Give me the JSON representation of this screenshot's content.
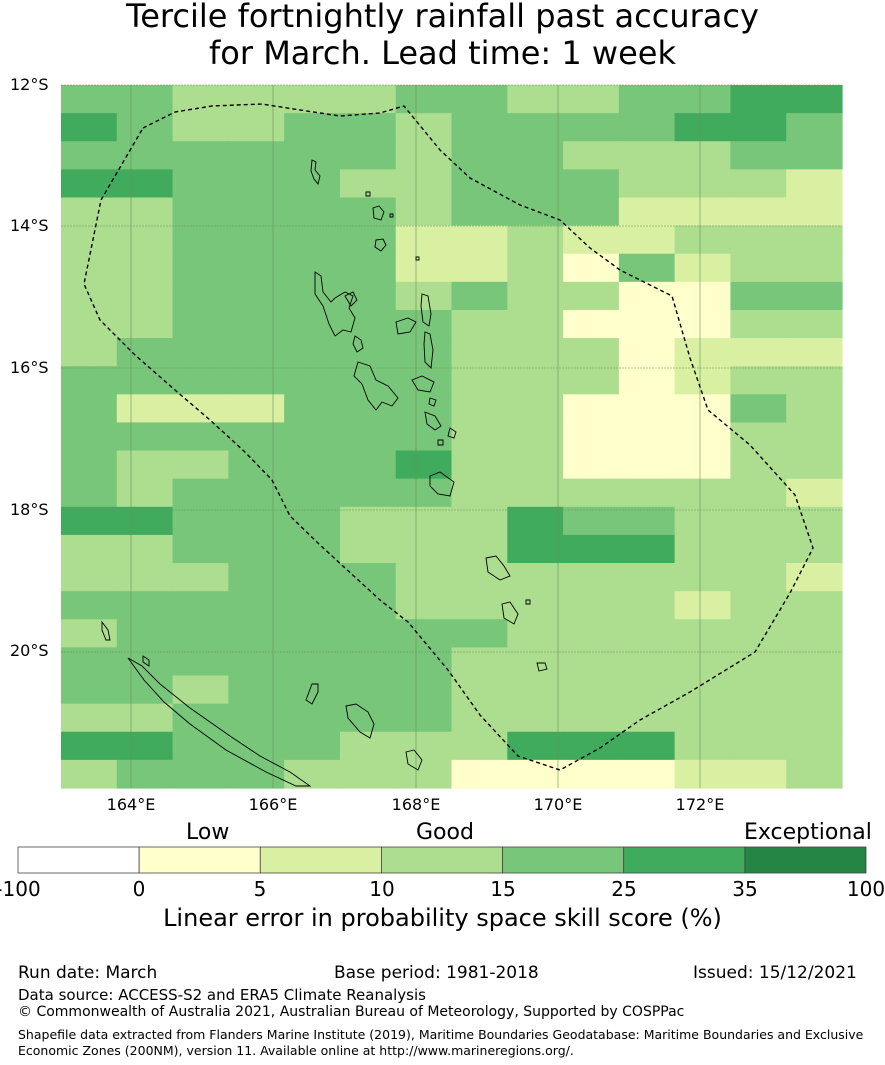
{
  "title_line1": "Tercile fortnightly rainfall past accuracy",
  "title_line2": "for March. Lead time: 1 week",
  "map": {
    "lat_labels": [
      "12°S",
      "14°S",
      "16°S",
      "18°S",
      "20°S"
    ],
    "lon_labels": [
      "164°E",
      "166°E",
      "168°E",
      "170°E",
      "172°E"
    ],
    "lon_range": [
      163,
      174
    ],
    "lat_range": [
      -21.9,
      -12
    ],
    "grid_rows": [
      "44333344334455",
      "54334434444554",
      "44444434433344",
      "55444334443332",
      "33444434442222",
      "33444422322333",
      "33444422314233",
      "33444434331144",
      "33444443311133",
      "34444443331222",
      "44444443331233",
      "42224443311143",
      "44444443311133",
      "43344453311133",
      "43444443333332",
      "55444333544333",
      "33444333555333",
      "33344433333332",
      "44444433333233",
      "34444444333333",
      "44444443333333",
      "44344443333333",
      "33444443333333",
      "55444333555333",
      "34443331111223"
    ],
    "grid_codes_meaning": "1=0-5, 2=5-10, 3=10-15, 4=15-25, 5=25-35"
  },
  "legend": {
    "categories": [
      "Low",
      "Good",
      "Exceptional"
    ],
    "ticks": [
      "-100",
      "0",
      "5",
      "10",
      "15",
      "25",
      "35",
      "100"
    ],
    "colors": [
      "#ffffff",
      "#ffffcc",
      "#d9f0a3",
      "#addd8e",
      "#78c679",
      "#41ab5d",
      "#238443"
    ],
    "label": "Linear error in probability space skill score (%)"
  },
  "footer": {
    "run_date": "Run date: March",
    "base_period": "Base period: 1981-2018",
    "issued": "Issued: 15/12/2021",
    "data_source": "Data source: ACCESS-S2 and ERA5 Climate Reanalysis",
    "copyright": "© Commonwealth of Australia 2021, Australian Bureau of Meteorology, Supported by COSPPac",
    "shapefile": "Shapefile data extracted from Flanders Marine Institute (2019), Maritime Boundaries Geodatabase: Maritime Boundaries and Exclusive Economic Zones (200NM), version 11. Available online at http://www.marineregions.org/."
  }
}
